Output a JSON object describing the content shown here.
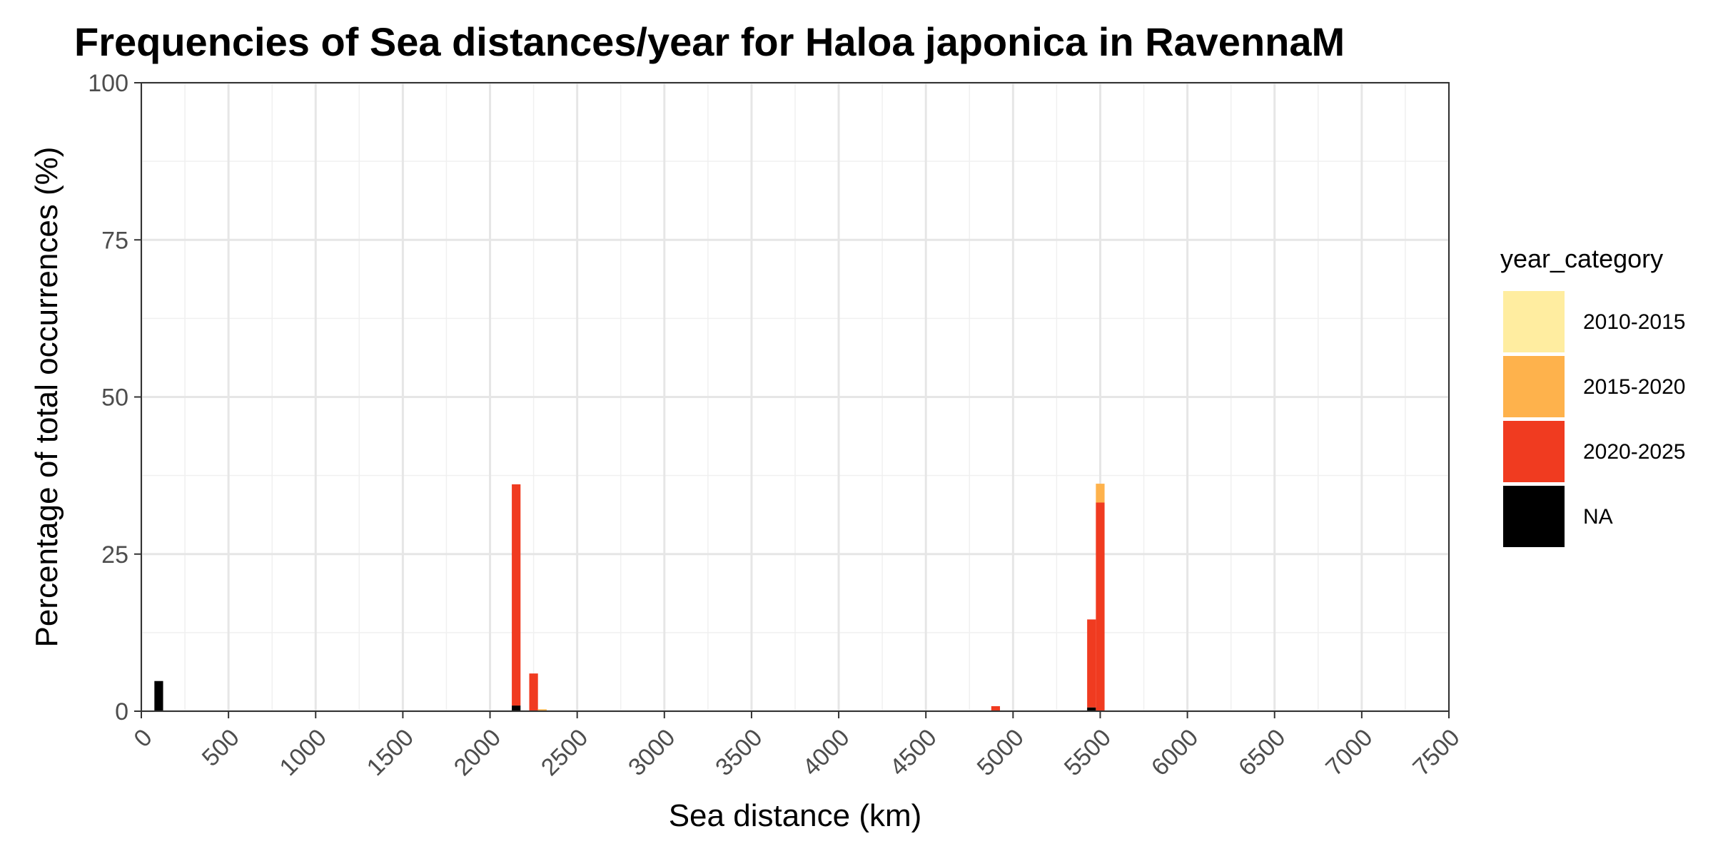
{
  "chart_data": {
    "type": "bar",
    "title": "Frequencies of Sea distances/year for Haloa japonica in RavennaM",
    "xlabel": "Sea distance (km)",
    "ylabel": "Percentage of total occurrences (%)",
    "xlim": [
      0,
      7500
    ],
    "ylim": [
      0,
      100
    ],
    "x_ticks": [
      0,
      500,
      1000,
      1500,
      2000,
      2500,
      3000,
      3500,
      4000,
      4500,
      5000,
      5500,
      6000,
      6500,
      7000,
      7500
    ],
    "y_ticks": [
      0,
      25,
      50,
      75,
      100
    ],
    "bin_width": 50,
    "stacked": true,
    "grid": true,
    "legend": {
      "title": "year_category",
      "position": "right"
    },
    "series": [
      {
        "name": "2010-2015",
        "color": "#FFEDA0",
        "bins": []
      },
      {
        "name": "2015-2020",
        "color": "#FEB24C",
        "bins": [
          {
            "x": 2300,
            "value": 0.3
          },
          {
            "x": 5500,
            "value": 3.0
          }
        ]
      },
      {
        "name": "2020-2025",
        "color": "#F03B20",
        "bins": [
          {
            "x": 2150,
            "value": 35.2
          },
          {
            "x": 2250,
            "value": 6.0
          },
          {
            "x": 4900,
            "value": 0.8
          },
          {
            "x": 5450,
            "value": 14.0
          },
          {
            "x": 5500,
            "value": 33.2
          }
        ]
      },
      {
        "name": "NA",
        "color": "#000000",
        "bins": [
          {
            "x": 100,
            "value": 4.8
          },
          {
            "x": 2150,
            "value": 0.9
          },
          {
            "x": 5450,
            "value": 0.6
          }
        ]
      }
    ]
  }
}
